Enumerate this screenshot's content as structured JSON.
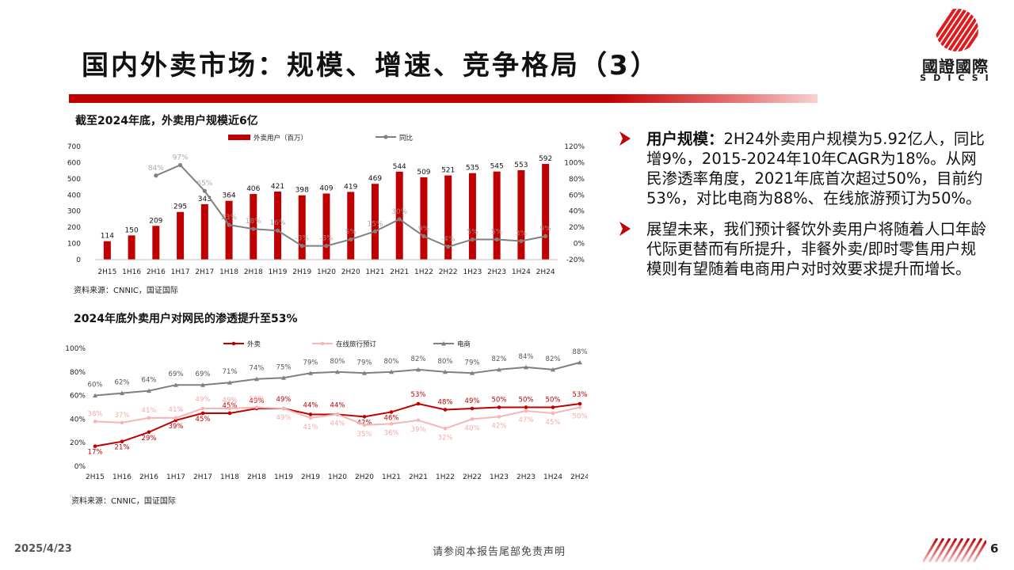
{
  "page": {
    "title": "国内外卖市场：规模、增速、竞争格局（3）",
    "logo_main": "國證國際",
    "logo_sub": "SDICSI",
    "date": "2025/4/23",
    "disclaimer": "请参阅本报告尾部免责声明",
    "page_number": "6"
  },
  "colors": {
    "brand_red": "#c00000",
    "light_pink": "#f4b6b6",
    "gray": "#808080"
  },
  "chart1": {
    "title": "截至2024年底，外卖用户规模近6亿",
    "source": "资料来源：CNNIC，国证国际"
  },
  "chart2": {
    "title": "2024年底外卖用户对网民的渗透提升至53%",
    "source": "资料来源：CNNIC，国证国际"
  },
  "chart_data": [
    {
      "type": "bar",
      "categories": [
        "2H15",
        "1H16",
        "2H16",
        "1H17",
        "2H17",
        "1H18",
        "2H18",
        "1H19",
        "2H19",
        "1H20",
        "2H20",
        "1H21",
        "2H21",
        "1H22",
        "2H22",
        "1H23",
        "2H23",
        "1H24",
        "2H24"
      ],
      "series": [
        {
          "name": "外卖用户（百万）",
          "type": "bar",
          "axis": "left",
          "values": [
            114,
            150,
            209,
            295,
            343,
            364,
            406,
            421,
            398,
            409,
            419,
            469,
            544,
            509,
            521,
            535,
            545,
            553,
            592
          ],
          "labels": [
            "114",
            "150",
            "209",
            "295",
            "343",
            "364",
            "406",
            "421",
            "398",
            "409",
            "419",
            "469",
            "544",
            "509",
            "521",
            "535",
            "545",
            "553",
            "592"
          ]
        },
        {
          "name": "同比",
          "type": "line",
          "axis": "right",
          "values": [
            null,
            null,
            84,
            97,
            65,
            23,
            18,
            16,
            -3,
            -3,
            5,
            15,
            30,
            9,
            -4,
            5,
            5,
            3,
            9
          ],
          "labels": [
            "",
            "",
            "84%",
            "97%",
            "65%",
            "23%",
            "18%",
            "16%",
            "-3%",
            "-3%",
            "5%",
            "15%",
            "30%",
            "9%",
            "-4%",
            "5%",
            "5%",
            "3%",
            "9%"
          ]
        }
      ],
      "ylim_left": [
        0,
        700
      ],
      "yticks_left": [
        "0",
        "100",
        "200",
        "300",
        "400",
        "500",
        "600",
        "700"
      ],
      "ylim_right": [
        -20,
        120
      ],
      "yticks_right": [
        "-20%",
        "0%",
        "20%",
        "40%",
        "60%",
        "80%",
        "100%",
        "120%"
      ],
      "legend": "top"
    },
    {
      "type": "line",
      "categories": [
        "2H15",
        "1H16",
        "2H16",
        "1H17",
        "2H17",
        "1H18",
        "2H18",
        "1H19",
        "2H19",
        "1H20",
        "2H20",
        "1H21",
        "2H21",
        "1H22",
        "2H22",
        "1H23",
        "2H23",
        "1H24",
        "2H24"
      ],
      "series": [
        {
          "name": "外卖",
          "color": "#c00000",
          "values": [
            17,
            21,
            29,
            39,
            45,
            45,
            49,
            49,
            44,
            44,
            42,
            46,
            53,
            48,
            49,
            50,
            50,
            50,
            53
          ]
        },
        {
          "name": "在线旅行预订",
          "color": "#f4b6b6",
          "values": [
            38,
            37,
            41,
            41,
            49,
            49,
            50,
            49,
            41,
            44,
            35,
            36,
            39,
            32,
            40,
            42,
            47,
            45,
            50
          ]
        },
        {
          "name": "电商",
          "color": "#808080",
          "values": [
            60,
            62,
            64,
            69,
            69,
            71,
            74,
            75,
            79,
            80,
            79,
            80,
            82,
            80,
            79,
            82,
            84,
            82,
            88
          ]
        }
      ],
      "ylim": [
        0,
        100
      ],
      "yticks": [
        "0%",
        "20%",
        "40%",
        "60%",
        "80%",
        "100%"
      ],
      "legend": "top"
    }
  ],
  "bullets": [
    {
      "bold": "用户规模：",
      "text": "2H24外卖用户规模为5.92亿人，同比增9%，2015-2024年10年CAGR为18%。从网民渗透率角度，2021年底首次超过50%，目前约53%，对比电商为88%、在线旅游预订为50%。"
    },
    {
      "bold": "",
      "text": "展望未来，我们预计餐饮外卖用户将随着人口年龄代际更替而有所提升，非餐外卖/即时零售用户规模则有望随着电商用户对时效要求提升而增长。"
    }
  ]
}
